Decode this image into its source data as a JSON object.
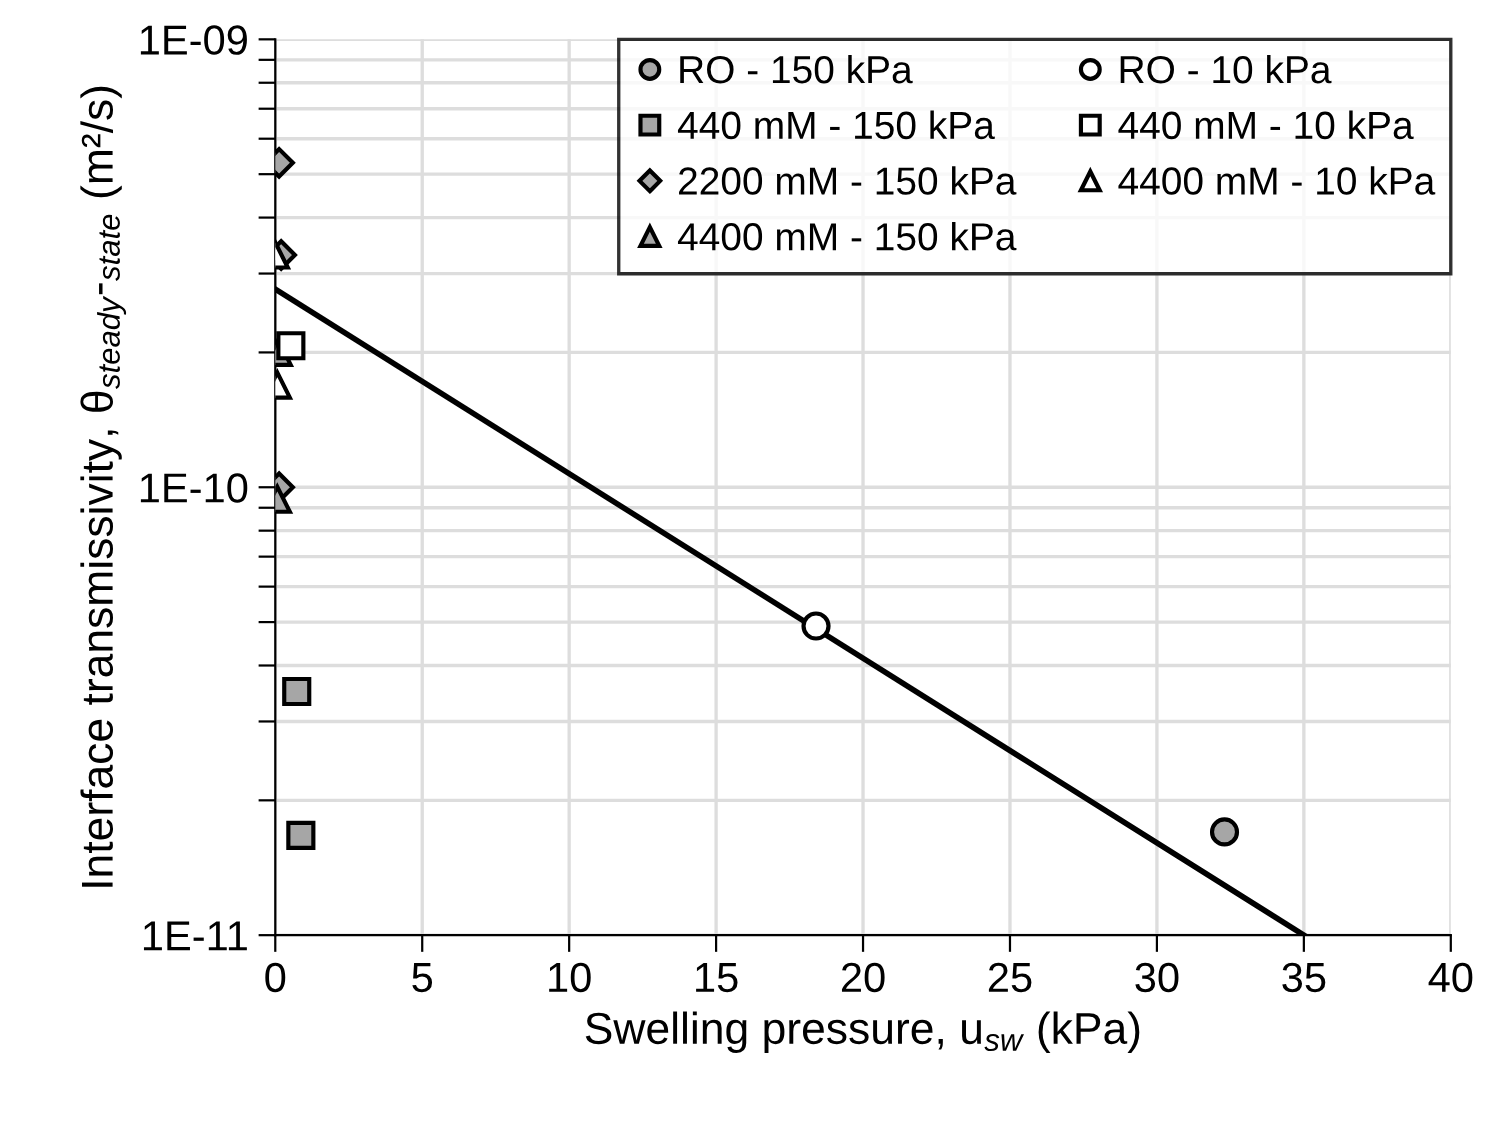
{
  "chart_data": {
    "type": "scatter",
    "xlabel": "Swelling pressure, u$_{sw}$ (kPa)",
    "ylabel": "Interface transmissivity, θ$_{steady}$-$_{state}$ (m²/s)",
    "log": "y",
    "grid": true,
    "legend": "top right",
    "xlim": [
      0,
      40
    ],
    "xticks": [
      0,
      5,
      10,
      15,
      20,
      25,
      30,
      35,
      40
    ],
    "ylim": [
      1e-11,
      1e-09
    ],
    "yticks": [
      {
        "value": 1e-11,
        "label": "1E-11"
      },
      {
        "value": 2e-11,
        "label": null
      },
      {
        "value": 3e-11,
        "label": null
      },
      {
        "value": 4e-11,
        "label": null
      },
      {
        "value": 5e-11,
        "label": null
      },
      {
        "value": 6e-11,
        "label": null
      },
      {
        "value": 7e-11,
        "label": null
      },
      {
        "value": 8e-11,
        "label": null
      },
      {
        "value": 9e-11,
        "label": null
      },
      {
        "value": 1e-10,
        "label": "1E-10"
      },
      {
        "value": 2e-10,
        "label": null
      },
      {
        "value": 3e-10,
        "label": null
      },
      {
        "value": 4e-10,
        "label": null
      },
      {
        "value": 5e-10,
        "label": null
      },
      {
        "value": 6e-10,
        "label": null
      },
      {
        "value": 7e-10,
        "label": null
      },
      {
        "value": 8e-10,
        "label": null
      },
      {
        "value": 9e-10,
        "label": null
      },
      {
        "value": 1e-09,
        "label": "1E-09"
      }
    ],
    "series": [
      {
        "name": "RO - 150 kPa",
        "marker": "circle",
        "color": "#a6a6a6",
        "x": [
          32.3
        ],
        "values": [
          1.7e-11
        ]
      },
      {
        "name": "440 mM - 150 kPa",
        "marker": "square",
        "color": "#a6a6a6",
        "x": [
          0.73,
          0.87
        ],
        "values": [
          3.5e-11,
          1.67e-11
        ]
      },
      {
        "name": "2200 mM - 150 kPa",
        "marker": "diamond",
        "color": "#a6a6a6",
        "x": [
          0.13,
          0.2,
          0.13
        ],
        "values": [
          5.3e-10,
          3.3e-10,
          1e-10
        ]
      },
      {
        "name": "4400 mM - 150 kPa",
        "marker": "triangle",
        "color": "#a6a6a6",
        "x": [
          0.1,
          0.07
        ],
        "values": [
          2e-10,
          9.4e-11
        ]
      },
      {
        "name": "RO - 10 kPa",
        "marker": "circle",
        "color": "#ffffff",
        "x": [
          18.4
        ],
        "values": [
          4.9e-11
        ]
      },
      {
        "name": "440 mM - 10 kPa",
        "marker": "square",
        "color": "#ffffff",
        "x": [
          0.53
        ],
        "values": [
          2.07e-10
        ]
      },
      {
        "name": "4400 mM - 10 kPa",
        "marker": "triangle",
        "color": "#ffffff",
        "x": [
          0.0,
          0.07
        ],
        "values": [
          3.3e-10,
          1.69e-10
        ]
      },
      {
        "type": "line",
        "marker": "none",
        "line_style": "solid",
        "color": "#000000",
        "x": [
          0,
          35
        ],
        "values": [
          2.77e-10,
          1e-11
        ]
      }
    ]
  }
}
